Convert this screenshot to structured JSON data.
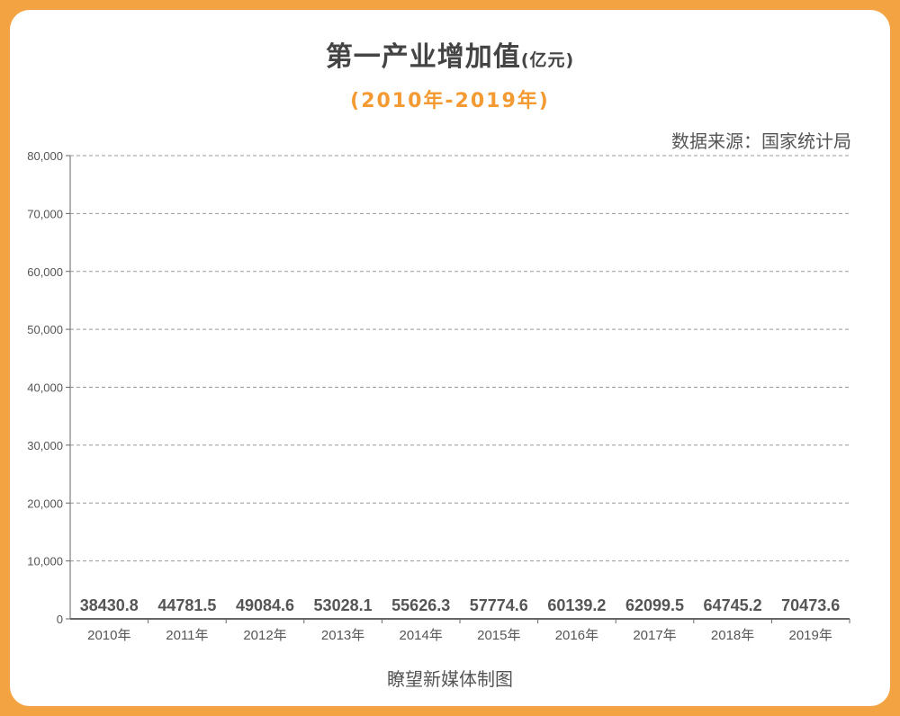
{
  "chart_data": {
    "type": "bar",
    "title": "第一产业增加值",
    "title_unit": "(亿元)",
    "subtitle": "(2010年-2019年)",
    "source": "数据来源：国家统计局",
    "credit": "瞭望新媒体制图",
    "categories": [
      "2010年",
      "2011年",
      "2012年",
      "2013年",
      "2014年",
      "2015年",
      "2016年",
      "2017年",
      "2018年",
      "2019年"
    ],
    "values": [
      38430.8,
      44781.5,
      49084.6,
      53028.1,
      55626.3,
      57774.6,
      60139.2,
      62099.5,
      64745.2,
      70473.6
    ],
    "data_labels": [
      "38430.8",
      "44781.5",
      "49084.6",
      "53028.1",
      "55626.3",
      "57774.6",
      "60139.2",
      "62099.5",
      "64745.2",
      "70473.6"
    ],
    "yticks": [
      "0",
      "10,000",
      "20,000",
      "30,000",
      "40,000",
      "50,000",
      "60,000",
      "70,000",
      "80,000"
    ],
    "ylim": [
      0,
      80000
    ],
    "grid": true,
    "bars_visible": false,
    "colors": {
      "border": "#f4a342",
      "subtitle": "#f39a33",
      "text": "#444444"
    }
  }
}
